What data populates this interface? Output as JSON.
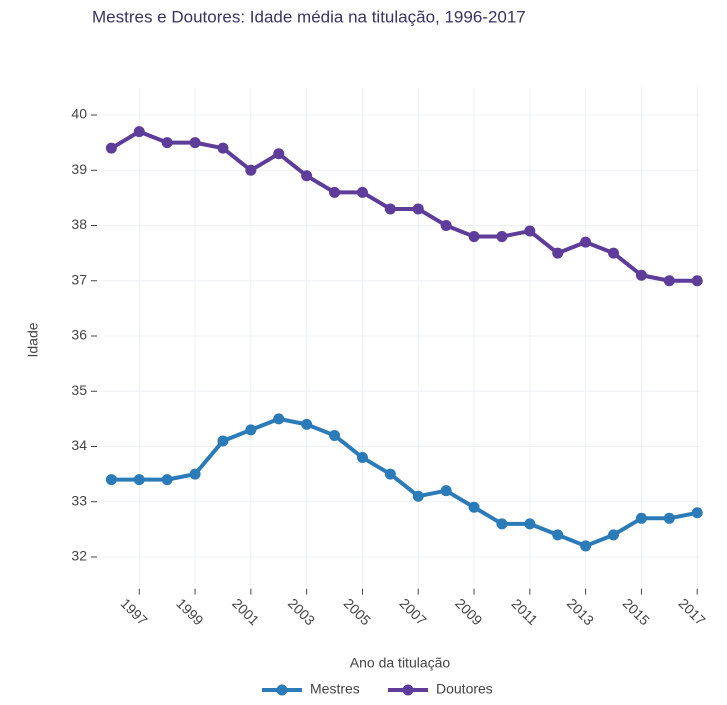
{
  "chart_data": {
    "type": "line",
    "title": "Mestres e Doutores: Idade média na titulação, 1996-2017",
    "x_label": "Ano da titulação",
    "y_label": "Idade",
    "x": [
      1996,
      1997,
      1998,
      1999,
      2000,
      2001,
      2002,
      2003,
      2004,
      2005,
      2006,
      2007,
      2008,
      2009,
      2010,
      2011,
      2012,
      2013,
      2014,
      2015,
      2016,
      2017
    ],
    "series": [
      {
        "name": "Mestres",
        "color": "#2b7bb9",
        "values": [
          33.4,
          33.4,
          33.4,
          33.5,
          34.1,
          34.3,
          34.5,
          34.4,
          34.2,
          33.8,
          33.5,
          33.1,
          33.2,
          32.9,
          32.6,
          32.6,
          32.4,
          32.2,
          32.4,
          32.7,
          32.7,
          32.8
        ]
      },
      {
        "name": "Doutores",
        "color": "#5e3c99",
        "values": [
          39.4,
          39.7,
          39.5,
          39.5,
          39.4,
          39.0,
          39.3,
          38.9,
          38.6,
          38.6,
          38.3,
          38.3,
          38.0,
          37.8,
          37.8,
          37.9,
          37.5,
          37.7,
          37.5,
          37.1,
          37.0,
          37.0
        ]
      }
    ],
    "xlim": [
      1995.7,
      2017.1
    ],
    "xticks": [
      1997,
      1999,
      2001,
      2003,
      2005,
      2007,
      2009,
      2011,
      2013,
      2015,
      2017
    ],
    "ylim": [
      31.5,
      40.5
    ],
    "yticks": [
      32,
      33,
      34,
      35,
      36,
      37,
      38,
      39,
      40
    ],
    "grid": true,
    "legend": "bottom"
  }
}
